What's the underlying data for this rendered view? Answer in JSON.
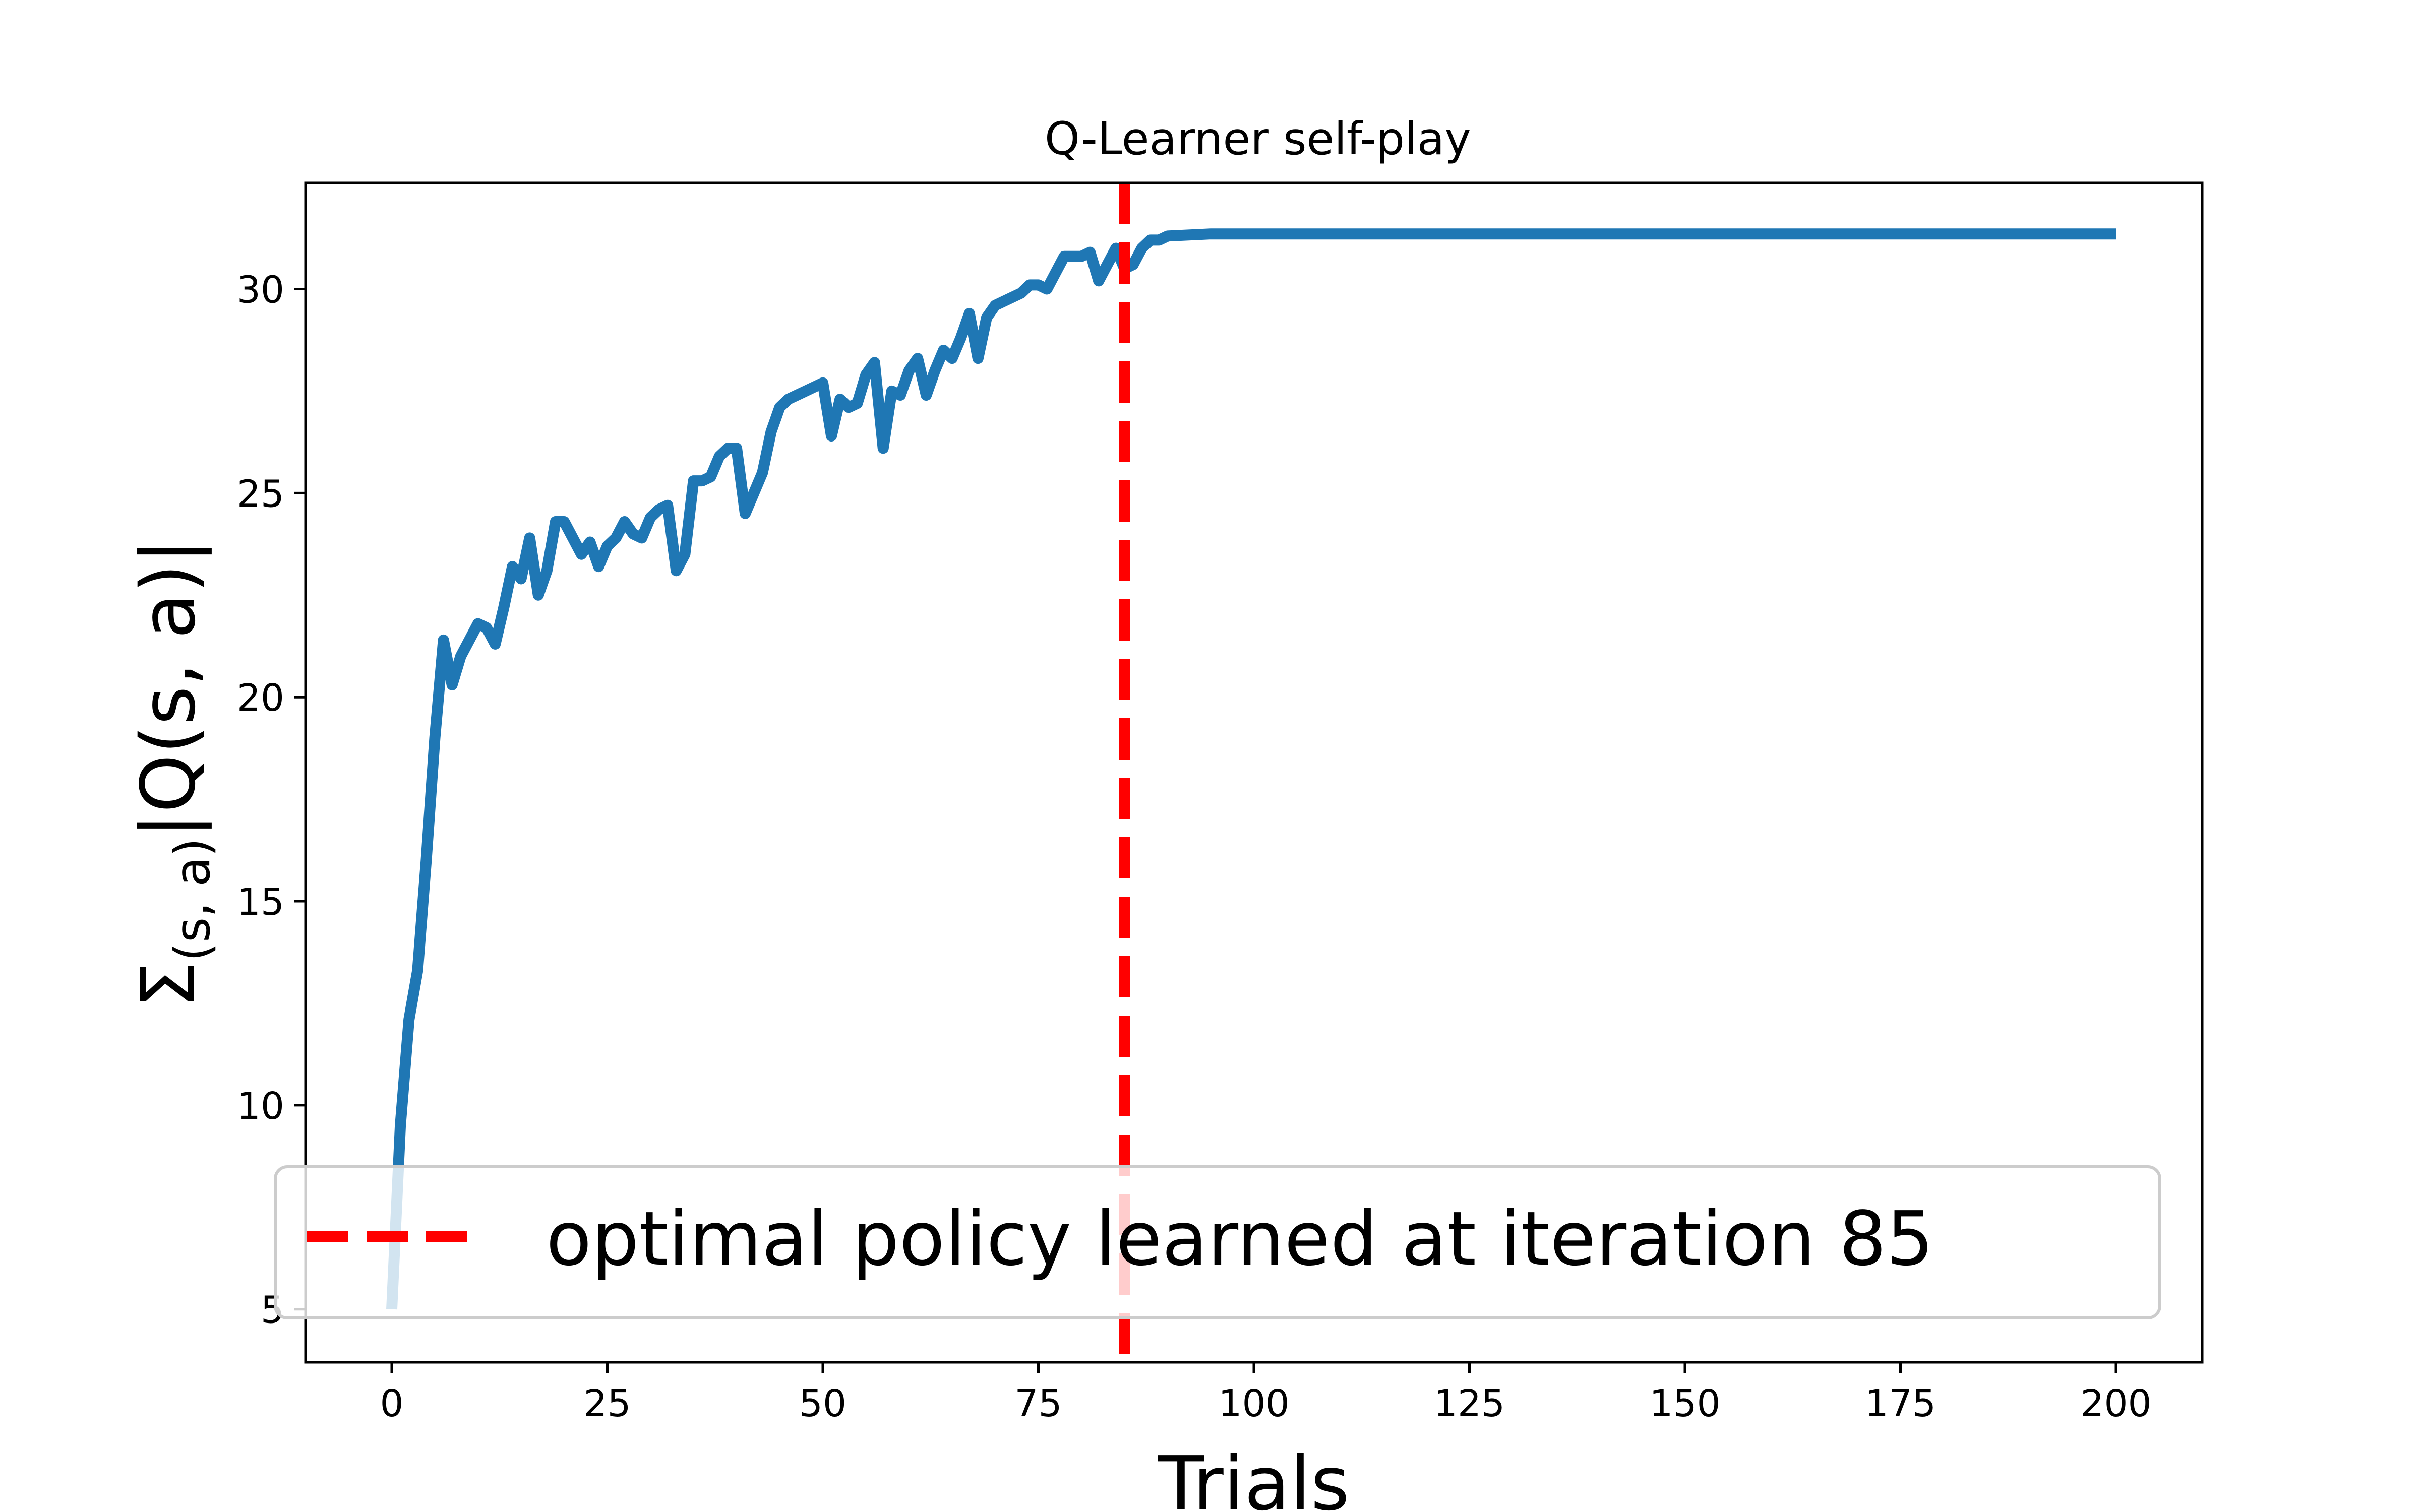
{
  "chart_data": {
    "type": "line",
    "title": "Q-Learner self-play",
    "xlabel": "Trials",
    "ylabel": {
      "prefix": "Σ",
      "subscript": "(s, a)",
      "suffix": "|Q(s, a)|"
    },
    "xlim": [
      -10,
      210
    ],
    "ylim": [
      3.7,
      32.6
    ],
    "xticks": [
      0,
      25,
      50,
      75,
      100,
      125,
      150,
      175,
      200
    ],
    "yticks": [
      5,
      10,
      15,
      20,
      25,
      30
    ],
    "series": [
      {
        "name": "sum |Q(s,a)|",
        "color": "#1f77b4",
        "x": [
          0,
          1,
          2,
          3,
          4,
          5,
          6,
          7,
          8,
          9,
          10,
          11,
          12,
          13,
          14,
          15,
          16,
          17,
          18,
          19,
          20,
          21,
          22,
          23,
          24,
          25,
          26,
          27,
          28,
          29,
          30,
          31,
          32,
          33,
          34,
          35,
          36,
          37,
          38,
          39,
          40,
          41,
          42,
          43,
          44,
          45,
          46,
          47,
          48,
          49,
          50,
          51,
          52,
          53,
          54,
          55,
          56,
          57,
          58,
          59,
          60,
          61,
          62,
          63,
          64,
          65,
          66,
          67,
          68,
          69,
          70,
          71,
          72,
          73,
          74,
          75,
          76,
          77,
          78,
          79,
          80,
          81,
          82,
          83,
          84,
          85,
          86,
          87,
          88,
          89,
          90,
          95,
          100,
          150,
          200
        ],
        "y": [
          5.0,
          9.5,
          12.1,
          13.3,
          16.0,
          19.0,
          21.4,
          20.3,
          21.0,
          21.4,
          21.8,
          21.7,
          21.3,
          22.2,
          23.2,
          22.9,
          23.9,
          22.5,
          23.1,
          24.3,
          24.3,
          23.9,
          23.5,
          23.8,
          23.2,
          23.7,
          23.9,
          24.3,
          24.0,
          23.9,
          24.4,
          24.6,
          24.7,
          23.1,
          23.5,
          25.3,
          25.3,
          25.4,
          25.9,
          26.1,
          26.1,
          24.5,
          25.0,
          25.5,
          26.5,
          27.1,
          27.3,
          27.4,
          27.5,
          27.6,
          27.7,
          26.4,
          27.3,
          27.1,
          27.2,
          27.9,
          28.2,
          26.1,
          27.5,
          27.4,
          28.0,
          28.3,
          27.4,
          28.0,
          28.5,
          28.3,
          28.8,
          29.4,
          28.3,
          29.3,
          29.6,
          29.7,
          29.8,
          29.9,
          30.1,
          30.1,
          30.0,
          30.4,
          30.8,
          30.8,
          30.8,
          30.9,
          30.2,
          30.6,
          31.0,
          30.5,
          30.6,
          31.0,
          31.2,
          31.2,
          31.3,
          31.35,
          31.35,
          31.35,
          31.35
        ]
      }
    ],
    "vline": {
      "x": 85,
      "color": "#ff0000",
      "style": "dashed"
    },
    "legend": {
      "position": "bottom-center",
      "entries": [
        {
          "label": "optimal policy learned at iteration 85",
          "color": "#ff0000",
          "style": "dashed"
        }
      ]
    }
  }
}
